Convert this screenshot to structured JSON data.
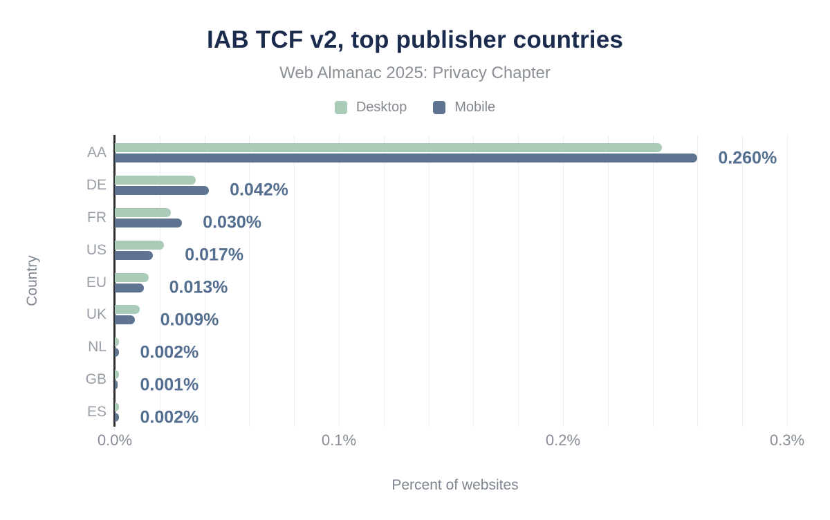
{
  "header": {
    "title": "IAB TCF v2, top publisher countries",
    "subtitle": "Web Almanac 2025: Privacy Chapter"
  },
  "legend": {
    "desktop_label": "Desktop",
    "mobile_label": "Mobile"
  },
  "axes": {
    "x_title": "Percent of websites",
    "y_title": "Country",
    "x_tick_labels": [
      "0.0%",
      "0.1%",
      "0.2%",
      "0.3%"
    ],
    "x_tick_values": [
      0.0,
      0.1,
      0.2,
      0.3
    ],
    "gridline_step": 0.02,
    "gridline_max": 0.3
  },
  "colors": {
    "desktop": "#a9cbb7",
    "mobile": "#5e7490",
    "title": "#1b2b4d",
    "value_label": "#546e90",
    "axis_line": "#2d2d2d",
    "gridline": "#edeef0"
  },
  "chart_data": {
    "type": "bar",
    "orientation": "horizontal",
    "title": "IAB TCF v2, top publisher countries",
    "subtitle": "Web Almanac 2025: Privacy Chapter",
    "xlabel": "Percent of websites",
    "ylabel": "Country",
    "categories": [
      "AA",
      "DE",
      "FR",
      "US",
      "EU",
      "UK",
      "NL",
      "GB",
      "ES"
    ],
    "series": [
      {
        "name": "Desktop",
        "color": "#a9cbb7",
        "values": [
          0.244,
          0.036,
          0.025,
          0.022,
          0.015,
          0.011,
          0.002,
          0.002,
          0.002
        ]
      },
      {
        "name": "Mobile",
        "color": "#5e7490",
        "values": [
          0.26,
          0.042,
          0.03,
          0.017,
          0.013,
          0.009,
          0.002,
          0.001,
          0.002
        ]
      }
    ],
    "value_labels": [
      "0.260%",
      "0.042%",
      "0.030%",
      "0.017%",
      "0.013%",
      "0.009%",
      "0.002%",
      "0.001%",
      "0.002%"
    ],
    "xlim": [
      0,
      0.3
    ],
    "x_tick_labels": [
      "0.0%",
      "0.1%",
      "0.2%",
      "0.3%"
    ],
    "grid": "vertical gridlines every 0.02%",
    "legend_position": "top"
  }
}
